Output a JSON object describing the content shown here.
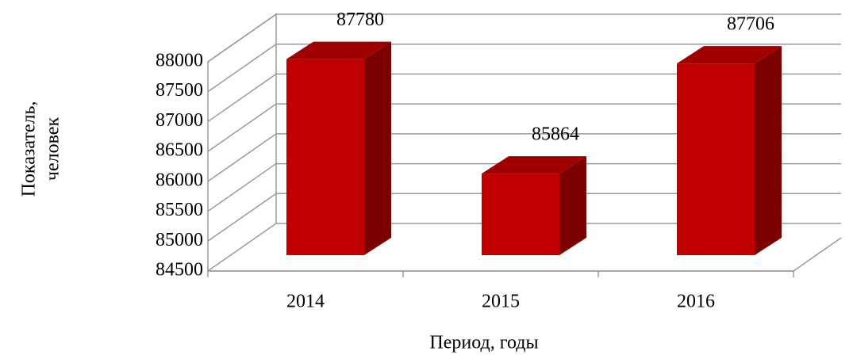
{
  "chart_data": {
    "type": "bar3d",
    "categories": [
      "2014",
      "2015",
      "2016"
    ],
    "values": [
      87780,
      85864,
      87706
    ],
    "color": "#c00000",
    "ylim": [
      84500,
      88000
    ],
    "yticks": [
      84500,
      85000,
      85500,
      86000,
      86500,
      87000,
      87500,
      88000
    ],
    "grid": true,
    "x_label": "Период, годы",
    "y_label": [
      "Показатель,",
      "человек"
    ]
  }
}
